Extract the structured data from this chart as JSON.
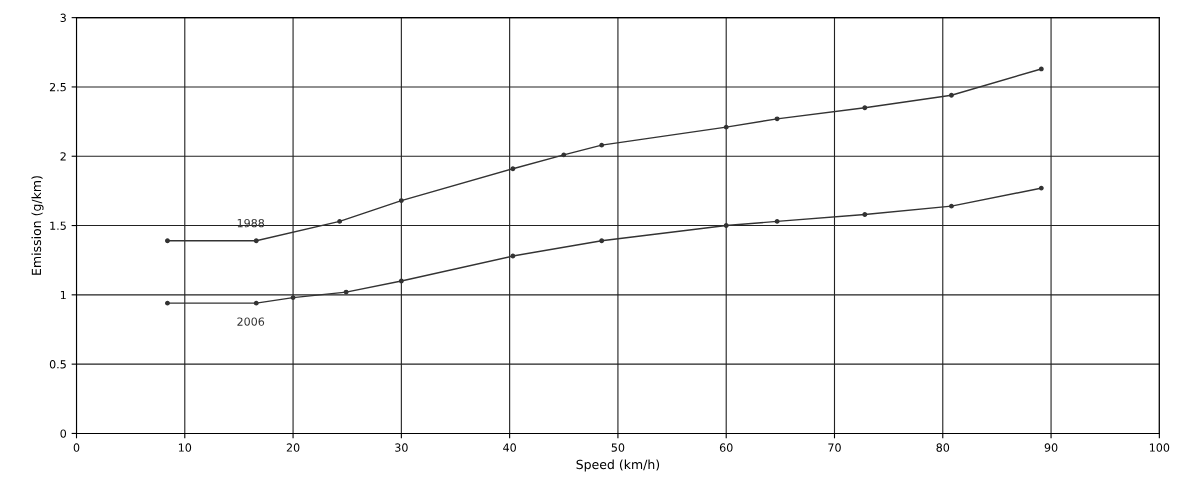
{
  "chart_data": {
    "type": "line",
    "xlabel": "Speed (km/h)",
    "ylabel": "Emission (g/km)",
    "series": [
      {
        "name": "1988",
        "color": "#333333",
        "x": [
          8.4,
          16.6,
          24.3,
          30,
          40.3,
          45,
          48.5,
          60,
          64.7,
          72.8,
          80.8,
          89.1
        ],
        "values": [
          1.39,
          1.39,
          1.53,
          1.68,
          1.91,
          2.01,
          2.08,
          2.21,
          2.27,
          2.35,
          2.44,
          2.63
        ]
      },
      {
        "name": "2006",
        "color": "#333333",
        "x": [
          8.4,
          16.6,
          20,
          24.9,
          30,
          40.3,
          48.5,
          60,
          64.7,
          72.8,
          80.8,
          89.1
        ],
        "values": [
          0.94,
          0.94,
          0.98,
          1.02,
          1.1,
          1.28,
          1.39,
          1.5,
          1.53,
          1.58,
          1.64,
          1.77
        ]
      }
    ],
    "xlim": [
      0,
      100
    ],
    "xticks": [
      0,
      10,
      20,
      30,
      40,
      50,
      60,
      70,
      80,
      90,
      100
    ],
    "ylim": [
      0,
      3
    ],
    "yticks": [
      0,
      0.5,
      1,
      1.5,
      2,
      2.5,
      3
    ],
    "grid": true,
    "marker": "circle",
    "line_style": "solid"
  }
}
